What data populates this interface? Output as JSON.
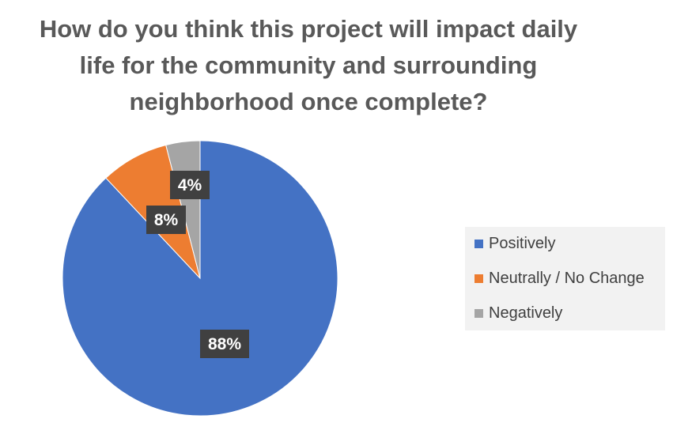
{
  "chart_data": {
    "type": "pie",
    "title": "How do you think this project will impact daily life for the community and surrounding neighborhood once complete?",
    "title_lines": [
      "How do you think this project will impact daily",
      "life for the community and surrounding",
      "neighborhood once complete?"
    ],
    "categories": [
      "Positively",
      "Neutrally / No Change",
      "Negatively"
    ],
    "values": [
      88,
      8,
      4
    ],
    "data_labels": [
      "88%",
      "8%",
      "4%"
    ],
    "colors": [
      "#4472C4",
      "#ED7D31",
      "#A5A5A5"
    ],
    "legend_position": "right"
  }
}
